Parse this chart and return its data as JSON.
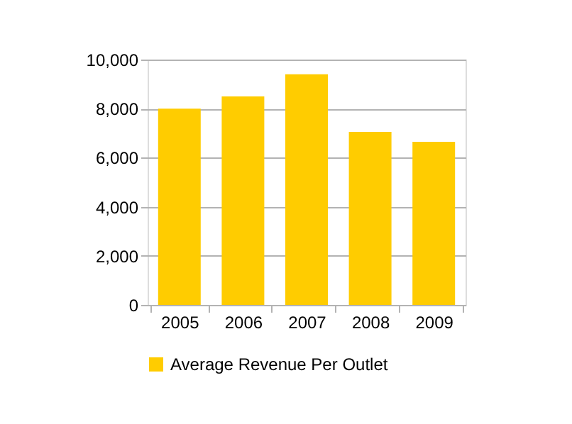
{
  "chart_data": {
    "type": "bar",
    "categories": [
      "2005",
      "2006",
      "2007",
      "2008",
      "2009"
    ],
    "series": [
      {
        "name": "Average Revenue Per Outlet",
        "color": "#ffcc00",
        "values": [
          8000,
          8500,
          9400,
          7050,
          6650
        ]
      }
    ],
    "ylim": [
      0,
      10000
    ],
    "yticks": [
      0,
      {
        "value": 2000,
        "label": "2,000"
      },
      {
        "value": 4000,
        "label": "4,000"
      },
      {
        "value": 6000,
        "label": "6,000"
      },
      {
        "value": 8000,
        "label": "8,000"
      },
      {
        "value": 10000,
        "label": "10,000"
      }
    ],
    "grid": "y",
    "legend": "bottom"
  }
}
